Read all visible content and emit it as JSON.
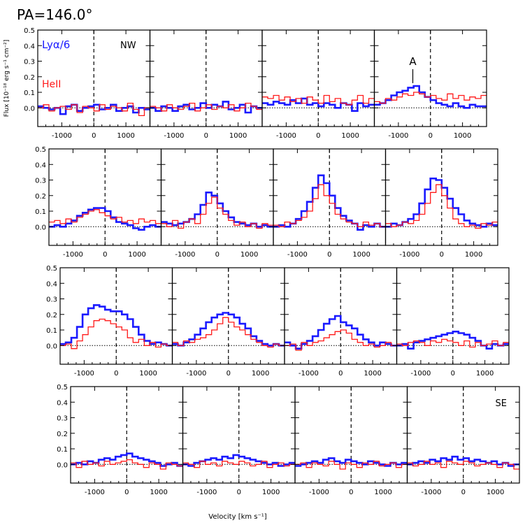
{
  "figure": {
    "title": "PA=146.0°",
    "ylabel": "Flux [10⁻¹⁸ erg s⁻¹ cm⁻²]",
    "xlabel": "Velocity [km s⁻¹]",
    "legend": {
      "lya": "Lyα/6",
      "heii": "HeII"
    },
    "labels": {
      "nw": "NW",
      "se": "SE",
      "a": "A"
    },
    "colors": {
      "lya": "#1a1aff",
      "heii": "#ff1a1a",
      "axes": "#000000"
    }
  },
  "chart_data": {
    "type": "line",
    "layout": "4x4 grid of step-histogram spectra; rows offset horizontally",
    "xlim": [
      -1750,
      1750
    ],
    "ylim": [
      -0.12,
      0.5
    ],
    "xticks": [
      -1000,
      0,
      1000
    ],
    "yticks": [
      0.0,
      0.1,
      0.2,
      0.3,
      0.4,
      0.5
    ],
    "bin_width": 175,
    "x_bin_centers": [
      -1662,
      -1487,
      -1312,
      -1137,
      -962,
      -787,
      -612,
      -437,
      -262,
      -87,
      87,
      262,
      437,
      612,
      787,
      962,
      1137,
      1312,
      1487,
      1662
    ],
    "series_names": [
      "Lyα/6",
      "HeII"
    ],
    "panels": [
      {
        "row": 0,
        "col": 0,
        "lya": [
          0.01,
          0.0,
          -0.01,
          0.0,
          -0.04,
          0.01,
          0.02,
          -0.02,
          0.0,
          0.01,
          0.02,
          -0.01,
          0.0,
          0.02,
          -0.02,
          0.0,
          0.01,
          -0.03,
          0.0,
          -0.01
        ],
        "heii": [
          0.0,
          0.02,
          -0.02,
          0.0,
          0.01,
          -0.01,
          0.02,
          -0.03,
          0.01,
          0.0,
          -0.02,
          0.02,
          -0.01,
          0.01,
          0.0,
          -0.02,
          0.03,
          -0.01,
          -0.05,
          0.0
        ]
      },
      {
        "row": 0,
        "col": 1,
        "lya": [
          0.0,
          -0.02,
          0.01,
          0.0,
          -0.02,
          0.01,
          0.02,
          -0.01,
          0.0,
          0.03,
          0.0,
          0.02,
          0.01,
          0.04,
          -0.01,
          0.0,
          0.02,
          -0.03,
          0.01,
          0.0
        ],
        "heii": [
          0.01,
          0.0,
          -0.02,
          0.02,
          0.0,
          -0.01,
          0.01,
          0.03,
          -0.02,
          0.0,
          0.02,
          -0.01,
          0.01,
          0.0,
          0.02,
          -0.02,
          0.0,
          0.03,
          0.01,
          -0.01
        ]
      },
      {
        "row": 0,
        "col": 2,
        "lya": [
          0.03,
          0.02,
          0.04,
          0.03,
          0.02,
          0.05,
          0.03,
          0.06,
          0.02,
          0.03,
          0.01,
          0.03,
          0.02,
          0.0,
          0.03,
          0.02,
          -0.02,
          0.03,
          0.01,
          0.02
        ],
        "heii": [
          0.07,
          0.06,
          0.08,
          0.05,
          0.07,
          0.04,
          0.06,
          0.03,
          0.07,
          0.05,
          0.03,
          0.08,
          0.04,
          0.06,
          0.03,
          0.02,
          0.05,
          0.08,
          0.03,
          0.06
        ]
      },
      {
        "row": 0,
        "col": 3,
        "lya": [
          0.02,
          0.03,
          0.05,
          0.08,
          0.1,
          0.11,
          0.13,
          0.14,
          0.1,
          0.07,
          0.05,
          0.03,
          0.02,
          0.01,
          0.03,
          0.01,
          0.0,
          0.02,
          0.01,
          0.01
        ],
        "heii": [
          0.04,
          0.03,
          0.06,
          0.05,
          0.07,
          0.09,
          0.08,
          0.1,
          0.09,
          0.07,
          0.08,
          0.06,
          0.05,
          0.09,
          0.06,
          0.08,
          0.05,
          0.07,
          0.06,
          0.08
        ]
      },
      {
        "row": 1,
        "col": 0,
        "lya": [
          0.0,
          0.01,
          0.0,
          0.02,
          0.04,
          0.07,
          0.09,
          0.11,
          0.12,
          0.12,
          0.1,
          0.06,
          0.03,
          0.02,
          0.01,
          -0.01,
          -0.02,
          0.0,
          0.01,
          0.0
        ],
        "heii": [
          0.03,
          0.04,
          0.02,
          0.05,
          0.03,
          0.06,
          0.08,
          0.1,
          0.11,
          0.09,
          0.07,
          0.05,
          0.06,
          0.03,
          0.04,
          0.02,
          0.05,
          0.03,
          0.04,
          0.02
        ]
      },
      {
        "row": 1,
        "col": 1,
        "lya": [
          0.03,
          0.02,
          0.01,
          0.02,
          0.03,
          0.05,
          0.08,
          0.14,
          0.22,
          0.2,
          0.15,
          0.1,
          0.06,
          0.03,
          0.02,
          0.01,
          0.02,
          0.0,
          0.01,
          0.0
        ],
        "heii": [
          0.02,
          0.0,
          0.04,
          -0.01,
          0.03,
          0.05,
          0.02,
          0.08,
          0.15,
          0.19,
          0.12,
          0.08,
          0.04,
          0.01,
          0.03,
          0.0,
          0.02,
          -0.01,
          0.02,
          0.01
        ]
      },
      {
        "row": 1,
        "col": 2,
        "lya": [
          0.0,
          0.01,
          0.0,
          0.02,
          0.05,
          0.1,
          0.16,
          0.25,
          0.33,
          0.28,
          0.2,
          0.12,
          0.07,
          0.04,
          0.02,
          -0.02,
          0.01,
          0.0,
          0.02,
          0.0
        ],
        "heii": [
          0.01,
          0.0,
          0.03,
          0.02,
          0.04,
          0.06,
          0.1,
          0.18,
          0.27,
          0.2,
          0.15,
          0.08,
          0.05,
          0.03,
          0.02,
          0.0,
          0.03,
          0.01,
          0.02,
          0.0
        ]
      },
      {
        "row": 1,
        "col": 3,
        "lya": [
          0.0,
          0.02,
          0.01,
          0.03,
          0.05,
          0.08,
          0.15,
          0.24,
          0.31,
          0.3,
          0.25,
          0.18,
          0.12,
          0.08,
          0.04,
          0.02,
          0.01,
          0.0,
          0.02,
          0.01
        ],
        "heii": [
          0.02,
          0.0,
          0.01,
          0.03,
          0.02,
          0.04,
          0.08,
          0.15,
          0.22,
          0.27,
          0.2,
          0.12,
          0.05,
          0.02,
          0.0,
          0.01,
          -0.01,
          0.02,
          0.01,
          0.03
        ]
      },
      {
        "row": 2,
        "col": 0,
        "lya": [
          0.01,
          0.02,
          0.05,
          0.12,
          0.2,
          0.24,
          0.26,
          0.25,
          0.23,
          0.22,
          0.22,
          0.2,
          0.17,
          0.12,
          0.07,
          0.03,
          0.01,
          0.02,
          0.01,
          0.0
        ],
        "heii": [
          0.0,
          0.01,
          -0.02,
          0.03,
          0.07,
          0.12,
          0.16,
          0.17,
          0.16,
          0.14,
          0.12,
          0.1,
          0.05,
          0.02,
          0.04,
          0.0,
          0.02,
          -0.01,
          0.01,
          0.0
        ]
      },
      {
        "row": 2,
        "col": 1,
        "lya": [
          0.01,
          0.0,
          0.02,
          0.04,
          0.07,
          0.11,
          0.15,
          0.18,
          0.2,
          0.21,
          0.2,
          0.18,
          0.14,
          0.11,
          0.06,
          0.03,
          0.01,
          0.0,
          0.01,
          0.0
        ],
        "heii": [
          0.02,
          0.0,
          0.03,
          0.02,
          0.04,
          0.05,
          0.07,
          0.1,
          0.14,
          0.18,
          0.15,
          0.12,
          0.1,
          0.07,
          0.04,
          0.02,
          0.0,
          -0.01,
          0.01,
          0.0
        ]
      },
      {
        "row": 2,
        "col": 2,
        "lya": [
          0.02,
          0.0,
          -0.02,
          0.01,
          0.03,
          0.06,
          0.1,
          0.14,
          0.17,
          0.19,
          0.15,
          0.13,
          0.11,
          0.07,
          0.04,
          0.02,
          0.0,
          0.02,
          0.01,
          0.0
        ],
        "heii": [
          0.0,
          0.01,
          -0.03,
          0.02,
          0.0,
          0.02,
          0.03,
          0.05,
          0.07,
          0.09,
          0.1,
          0.08,
          0.04,
          0.02,
          0.0,
          0.01,
          -0.01,
          0.0,
          0.02,
          0.0
        ]
      },
      {
        "row": 2,
        "col": 3,
        "lya": [
          0.0,
          0.01,
          -0.02,
          0.02,
          0.03,
          0.04,
          0.05,
          0.06,
          0.07,
          0.08,
          0.09,
          0.08,
          0.07,
          0.05,
          0.03,
          0.0,
          -0.02,
          0.01,
          0.0,
          0.01
        ],
        "heii": [
          0.01,
          0.0,
          0.02,
          0.03,
          0.02,
          0.0,
          0.03,
          0.02,
          0.04,
          0.03,
          0.02,
          0.0,
          0.03,
          -0.01,
          0.02,
          0.0,
          0.01,
          0.03,
          0.0,
          0.02
        ]
      },
      {
        "row": 3,
        "col": 0,
        "lya": [
          0.0,
          0.01,
          0.0,
          0.02,
          0.01,
          0.03,
          0.04,
          0.03,
          0.05,
          0.06,
          0.07,
          0.05,
          0.04,
          0.03,
          0.02,
          0.01,
          -0.01,
          0.0,
          0.01,
          -0.01
        ],
        "heii": [
          0.01,
          -0.02,
          0.02,
          0.0,
          0.01,
          -0.01,
          0.02,
          0.0,
          0.01,
          0.02,
          0.03,
          0.01,
          0.0,
          -0.02,
          0.01,
          0.0,
          -0.03,
          0.01,
          0.0,
          -0.01
        ]
      },
      {
        "row": 3,
        "col": 1,
        "lya": [
          0.0,
          -0.01,
          0.01,
          0.02,
          0.03,
          0.04,
          0.03,
          0.05,
          0.04,
          0.06,
          0.05,
          0.04,
          0.03,
          0.02,
          0.01,
          0.0,
          0.01,
          -0.01,
          0.0,
          0.01
        ],
        "heii": [
          0.01,
          0.0,
          -0.02,
          0.02,
          0.0,
          0.01,
          -0.01,
          0.02,
          0.01,
          0.0,
          0.02,
          0.01,
          -0.01,
          0.0,
          0.02,
          -0.02,
          0.0,
          0.01,
          -0.01,
          0.0
        ]
      },
      {
        "row": 3,
        "col": 2,
        "lya": [
          -0.01,
          0.0,
          0.01,
          0.02,
          0.01,
          0.03,
          0.04,
          0.02,
          0.01,
          0.03,
          0.02,
          0.01,
          0.0,
          0.02,
          0.01,
          0.0,
          -0.01,
          0.01,
          0.0,
          0.01
        ],
        "heii": [
          0.0,
          0.01,
          -0.02,
          0.01,
          0.0,
          -0.01,
          0.02,
          0.0,
          -0.03,
          0.01,
          0.0,
          -0.02,
          0.01,
          0.0,
          0.02,
          -0.01,
          0.0,
          0.01,
          -0.02,
          0.0
        ]
      },
      {
        "row": 3,
        "col": 3,
        "lya": [
          0.0,
          0.01,
          0.02,
          0.01,
          0.03,
          0.02,
          0.04,
          0.03,
          0.05,
          0.03,
          0.04,
          0.02,
          0.03,
          0.02,
          0.01,
          0.02,
          0.0,
          0.01,
          -0.01,
          0.0
        ],
        "heii": [
          0.01,
          -0.01,
          0.0,
          0.02,
          0.0,
          0.01,
          -0.02,
          0.02,
          0.01,
          0.0,
          0.02,
          0.01,
          -0.01,
          0.0,
          0.01,
          0.0,
          -0.02,
          0.01,
          0.0,
          -0.03
        ]
      }
    ]
  }
}
